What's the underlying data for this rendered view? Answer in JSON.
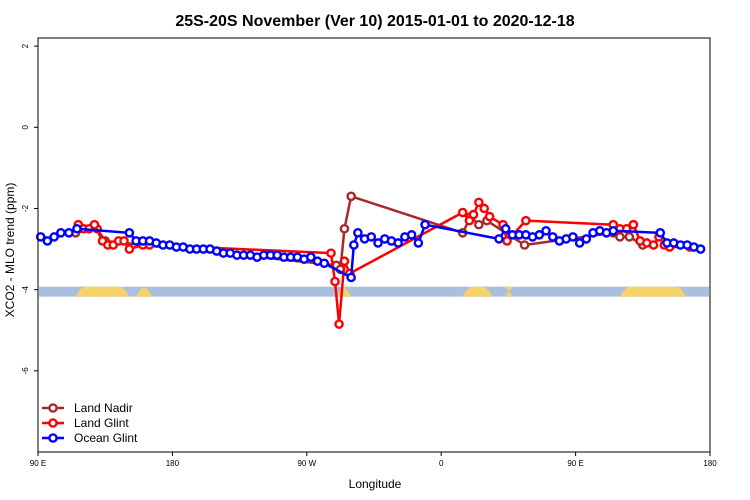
{
  "chart_data": {
    "type": "line",
    "title": "25S-20S November (Ver 10)   2015-01-01 to 2020-12-18",
    "xlabel": "Longitude",
    "ylabel": "XCO2 - MLO trend (ppm)",
    "xlim": [
      0,
      500
    ],
    "ylim": [
      -8,
      2.2
    ],
    "x_ticks": [
      {
        "value": 0,
        "label": "90 E"
      },
      {
        "value": 100,
        "label": "180"
      },
      {
        "value": 200,
        "label": "90 W"
      },
      {
        "value": 300,
        "label": "0"
      },
      {
        "value": 400,
        "label": "90 E"
      },
      {
        "value": 500,
        "label": "180"
      }
    ],
    "y_ticks": [
      {
        "value": 2,
        "label": "2"
      },
      {
        "value": 0,
        "label": "0"
      },
      {
        "value": -2,
        "label": "-2"
      },
      {
        "value": -4,
        "label": "-4"
      },
      {
        "value": -6,
        "label": "-6"
      }
    ],
    "grid": false,
    "legend_position": "bottom-left",
    "land_ocean_band": {
      "y": -4.05,
      "ocean_color": "#a9bfdd",
      "land_color": "#f5d26a",
      "land_ranges": [
        [
          28,
          68
        ],
        [
          73,
          85
        ],
        [
          223,
          233
        ],
        [
          316,
          338
        ],
        [
          348,
          353
        ],
        [
          433,
          482
        ]
      ]
    },
    "series": [
      {
        "name": "Land Nadir",
        "color": "#a52a2a",
        "points": [
          [
            28,
            -2.6
          ],
          [
            44,
            -2.5
          ],
          [
            50,
            -2.8
          ],
          [
            222,
            -3.4
          ],
          [
            225,
            -3.5
          ],
          [
            228,
            -2.5
          ],
          [
            233,
            -1.7
          ],
          [
            316,
            -2.6
          ],
          [
            322,
            -2.2
          ],
          [
            328,
            -2.4
          ],
          [
            334,
            -2.3
          ],
          [
            362,
            -2.9
          ],
          [
            428,
            -2.6
          ],
          [
            433,
            -2.7
          ],
          [
            440,
            -2.7
          ],
          [
            450,
            -2.9
          ]
        ]
      },
      {
        "name": "Land Glint",
        "color": "#ff0000",
        "points": [
          [
            30,
            -2.4
          ],
          [
            34,
            -2.5
          ],
          [
            38,
            -2.5
          ],
          [
            42,
            -2.4
          ],
          [
            48,
            -2.8
          ],
          [
            52,
            -2.9
          ],
          [
            56,
            -2.9
          ],
          [
            60,
            -2.8
          ],
          [
            64,
            -2.8
          ],
          [
            68,
            -3.0
          ],
          [
            78,
            -2.9
          ],
          [
            83,
            -2.9
          ],
          [
            218,
            -3.1
          ],
          [
            221,
            -3.8
          ],
          [
            224,
            -4.85
          ],
          [
            228,
            -3.3
          ],
          [
            232,
            -3.6
          ],
          [
            316,
            -2.1
          ],
          [
            321,
            -2.3
          ],
          [
            324,
            -2.15
          ],
          [
            328,
            -1.85
          ],
          [
            332,
            -2.0
          ],
          [
            336,
            -2.2
          ],
          [
            346,
            -2.4
          ],
          [
            349,
            -2.8
          ],
          [
            363,
            -2.3
          ],
          [
            428,
            -2.4
          ],
          [
            433,
            -2.5
          ],
          [
            438,
            -2.5
          ],
          [
            443,
            -2.4
          ],
          [
            448,
            -2.8
          ],
          [
            453,
            -2.85
          ],
          [
            458,
            -2.9
          ],
          [
            462,
            -2.7
          ],
          [
            466,
            -2.9
          ],
          [
            470,
            -2.95
          ],
          [
            485,
            -2.95
          ]
        ]
      },
      {
        "name": "Ocean Glint",
        "color": "#0000ff",
        "points": [
          [
            2,
            -2.7
          ],
          [
            7,
            -2.8
          ],
          [
            12,
            -2.7
          ],
          [
            17,
            -2.6
          ],
          [
            23,
            -2.6
          ],
          [
            29,
            -2.5
          ],
          [
            68,
            -2.6
          ],
          [
            73,
            -2.8
          ],
          [
            78,
            -2.8
          ],
          [
            83,
            -2.8
          ],
          [
            88,
            -2.85
          ],
          [
            93,
            -2.9
          ],
          [
            98,
            -2.9
          ],
          [
            103,
            -2.95
          ],
          [
            108,
            -2.95
          ],
          [
            113,
            -3.0
          ],
          [
            118,
            -3.0
          ],
          [
            123,
            -3.0
          ],
          [
            128,
            -3.0
          ],
          [
            133,
            -3.05
          ],
          [
            138,
            -3.1
          ],
          [
            143,
            -3.1
          ],
          [
            148,
            -3.15
          ],
          [
            153,
            -3.15
          ],
          [
            158,
            -3.15
          ],
          [
            163,
            -3.2
          ],
          [
            168,
            -3.15
          ],
          [
            173,
            -3.15
          ],
          [
            178,
            -3.15
          ],
          [
            183,
            -3.2
          ],
          [
            188,
            -3.2
          ],
          [
            193,
            -3.2
          ],
          [
            198,
            -3.25
          ],
          [
            203,
            -3.2
          ],
          [
            208,
            -3.3
          ],
          [
            213,
            -3.35
          ],
          [
            233,
            -3.7
          ],
          [
            235,
            -2.9
          ],
          [
            238,
            -2.6
          ],
          [
            243,
            -2.75
          ],
          [
            248,
            -2.7
          ],
          [
            253,
            -2.85
          ],
          [
            258,
            -2.75
          ],
          [
            263,
            -2.8
          ],
          [
            268,
            -2.85
          ],
          [
            273,
            -2.7
          ],
          [
            278,
            -2.65
          ],
          [
            283,
            -2.85
          ],
          [
            288,
            -2.4
          ],
          [
            343,
            -2.75
          ],
          [
            348,
            -2.5
          ],
          [
            353,
            -2.65
          ],
          [
            358,
            -2.65
          ],
          [
            363,
            -2.65
          ],
          [
            368,
            -2.7
          ],
          [
            373,
            -2.65
          ],
          [
            378,
            -2.55
          ],
          [
            383,
            -2.7
          ],
          [
            388,
            -2.8
          ],
          [
            393,
            -2.75
          ],
          [
            398,
            -2.7
          ],
          [
            403,
            -2.85
          ],
          [
            408,
            -2.75
          ],
          [
            413,
            -2.6
          ],
          [
            418,
            -2.55
          ],
          [
            423,
            -2.6
          ],
          [
            428,
            -2.55
          ],
          [
            463,
            -2.6
          ],
          [
            468,
            -2.85
          ],
          [
            473,
            -2.85
          ],
          [
            478,
            -2.9
          ],
          [
            483,
            -2.9
          ],
          [
            488,
            -2.95
          ],
          [
            493,
            -3.0
          ]
        ]
      }
    ]
  }
}
